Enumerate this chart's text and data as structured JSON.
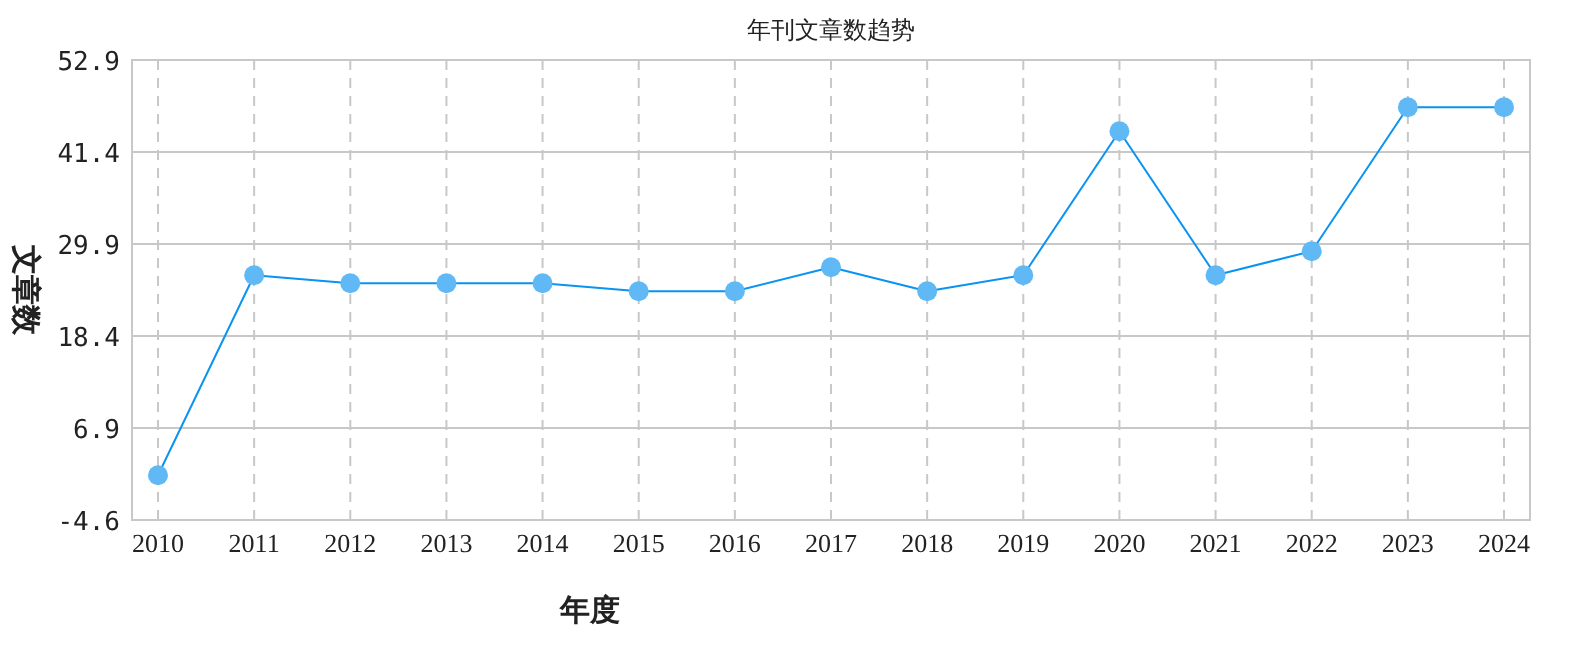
{
  "chart_data": {
    "type": "line",
    "title": "年刊文章数趋势",
    "xlabel": "年度",
    "ylabel": "文章数",
    "categories": [
      "2010",
      "2011",
      "2012",
      "2013",
      "2014",
      "2015",
      "2016",
      "2017",
      "2018",
      "2019",
      "2020",
      "2021",
      "2022",
      "2023",
      "2024"
    ],
    "series": [
      {
        "color": "#0a93f0",
        "values": [
          1,
          26,
          25,
          25,
          25,
          24,
          24,
          27,
          24,
          26,
          44,
          26,
          29,
          47,
          47
        ]
      }
    ],
    "ylim": [
      -4.6,
      52.9
    ],
    "yticks": [
      -4.6,
      6.9,
      18.4,
      29.9,
      41.4,
      52.9
    ],
    "grid": true,
    "marker": "circle",
    "line_style": "solid"
  }
}
